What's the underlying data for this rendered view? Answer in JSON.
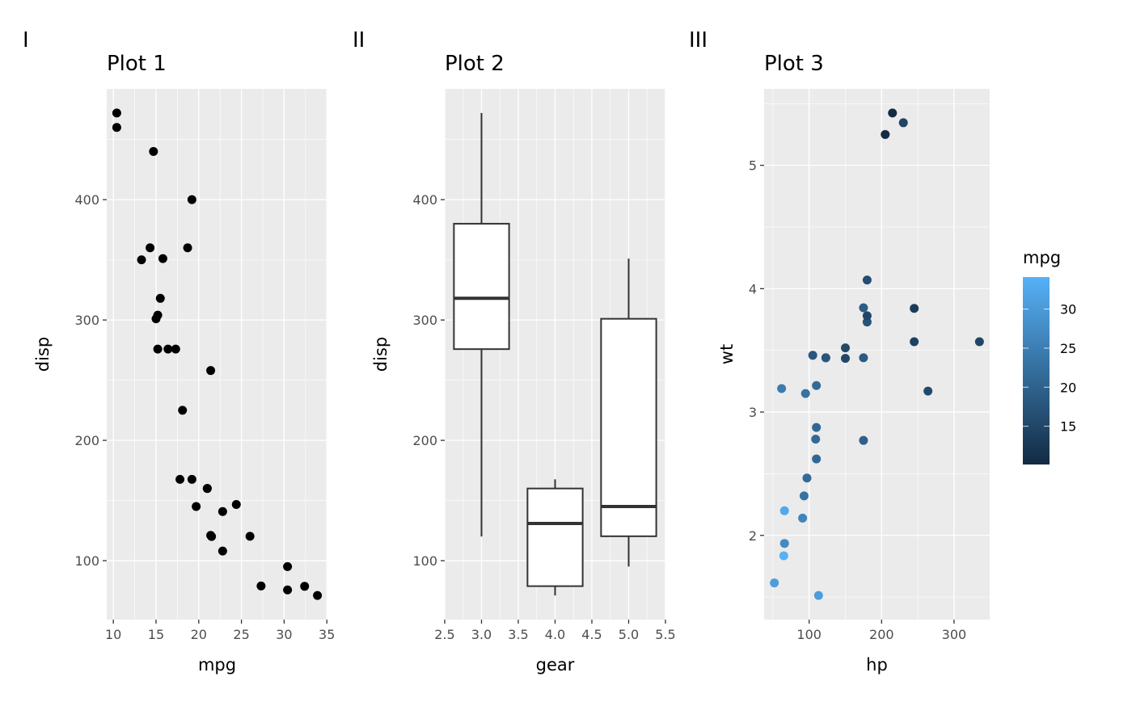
{
  "chart_data": [
    {
      "type": "scatter",
      "tag": "I",
      "title": "Plot 1",
      "xlabel": "mpg",
      "ylabel": "disp",
      "xlim": [
        9.225,
        35.075
      ],
      "ylim": [
        51.05,
        492.05
      ],
      "xticks": [
        10,
        15,
        20,
        25,
        30,
        35
      ],
      "xtick_labels": [
        "10",
        "15",
        "20",
        "25",
        "30",
        "35"
      ],
      "yticks": [
        100,
        200,
        300,
        400
      ],
      "ytick_labels": [
        "100",
        "200",
        "300",
        "400"
      ],
      "grid": true,
      "point_color": "#000000",
      "x": [
        21,
        21,
        22.8,
        21.4,
        18.7,
        18.1,
        14.3,
        24.4,
        22.8,
        19.2,
        17.8,
        16.4,
        17.3,
        15.2,
        10.4,
        10.4,
        14.7,
        32.4,
        30.4,
        33.9,
        21.5,
        15.5,
        15.2,
        13.3,
        19.2,
        27.3,
        26,
        30.4,
        15.8,
        19.7,
        15,
        21.4
      ],
      "y": [
        160,
        160,
        108,
        258,
        360,
        225,
        360,
        146.7,
        140.8,
        167.6,
        167.6,
        275.8,
        275.8,
        275.8,
        472,
        460,
        440,
        78.7,
        75.7,
        71.1,
        120.1,
        318,
        304,
        350,
        400,
        79,
        120.3,
        95.1,
        351,
        145,
        301,
        121
      ]
    },
    {
      "type": "box",
      "tag": "II",
      "title": "Plot 2",
      "xlabel": "gear",
      "ylabel": "disp",
      "xlim": [
        2.5,
        5.5
      ],
      "ylim": [
        51.05,
        492.05
      ],
      "xticks": [
        2.5,
        3.0,
        3.5,
        4.0,
        4.5,
        5.0,
        5.5
      ],
      "xtick_labels": [
        "2.5",
        "3.0",
        "3.5",
        "4.0",
        "4.5",
        "5.0",
        "5.5"
      ],
      "yticks": [
        100,
        200,
        300,
        400
      ],
      "ytick_labels": [
        "100",
        "200",
        "300",
        "400"
      ],
      "grid": true,
      "boxes": [
        {
          "x": 3,
          "min": 120.1,
          "q1": 275.8,
          "median": 318,
          "q3": 380,
          "max": 472
        },
        {
          "x": 4,
          "min": 71.1,
          "q1": 78.85,
          "median": 130.9,
          "q3": 160,
          "max": 167.6
        },
        {
          "x": 5,
          "min": 95.1,
          "q1": 120.3,
          "median": 145,
          "q3": 301,
          "max": 351
        }
      ]
    },
    {
      "type": "scatter",
      "tag": "III",
      "title": "Plot 3",
      "xlabel": "hp",
      "ylabel": "wt",
      "xlim": [
        37.85,
        349.15
      ],
      "ylim": [
        1.3175,
        5.6196
      ],
      "xticks": [
        100,
        200,
        300
      ],
      "xtick_labels": [
        "100",
        "200",
        "300"
      ],
      "yticks": [
        2,
        3,
        4,
        5
      ],
      "ytick_labels": [
        "2",
        "3",
        "4",
        "5"
      ],
      "grid": true,
      "x": [
        110,
        110,
        93,
        110,
        175,
        105,
        245,
        62,
        95,
        123,
        123,
        180,
        180,
        180,
        205,
        215,
        230,
        66,
        52,
        65,
        97,
        150,
        150,
        245,
        175,
        66,
        91,
        113,
        264,
        175,
        335,
        109
      ],
      "y": [
        2.62,
        2.875,
        2.32,
        3.215,
        3.44,
        3.46,
        3.57,
        3.19,
        3.15,
        3.44,
        3.44,
        4.07,
        3.73,
        3.78,
        5.25,
        5.424,
        5.345,
        2.2,
        1.615,
        1.835,
        2.465,
        3.52,
        3.435,
        3.84,
        3.845,
        1.935,
        2.14,
        1.513,
        3.17,
        2.77,
        3.57,
        2.78
      ],
      "color": [
        21,
        21,
        22.8,
        21.4,
        18.7,
        18.1,
        14.3,
        24.4,
        22.8,
        19.2,
        17.8,
        16.4,
        17.3,
        15.2,
        10.4,
        10.4,
        14.7,
        32.4,
        30.4,
        33.9,
        21.5,
        15.5,
        15.2,
        13.3,
        19.2,
        27.3,
        26,
        30.4,
        15.8,
        19.7,
        15,
        21.4
      ],
      "legend": {
        "title": "mpg",
        "position": "right",
        "range": [
          10.4,
          33.9
        ],
        "ticks": [
          15,
          20,
          25,
          30
        ],
        "tick_labels": [
          "15",
          "20",
          "25",
          "30"
        ],
        "low_color": "#132B43",
        "high_color": "#56B1F7"
      }
    }
  ],
  "colors": {
    "panel": "#EBEBEB",
    "grid": "#FFFFFF",
    "tick_text": "#4D4D4D",
    "box_line": "#333333"
  }
}
